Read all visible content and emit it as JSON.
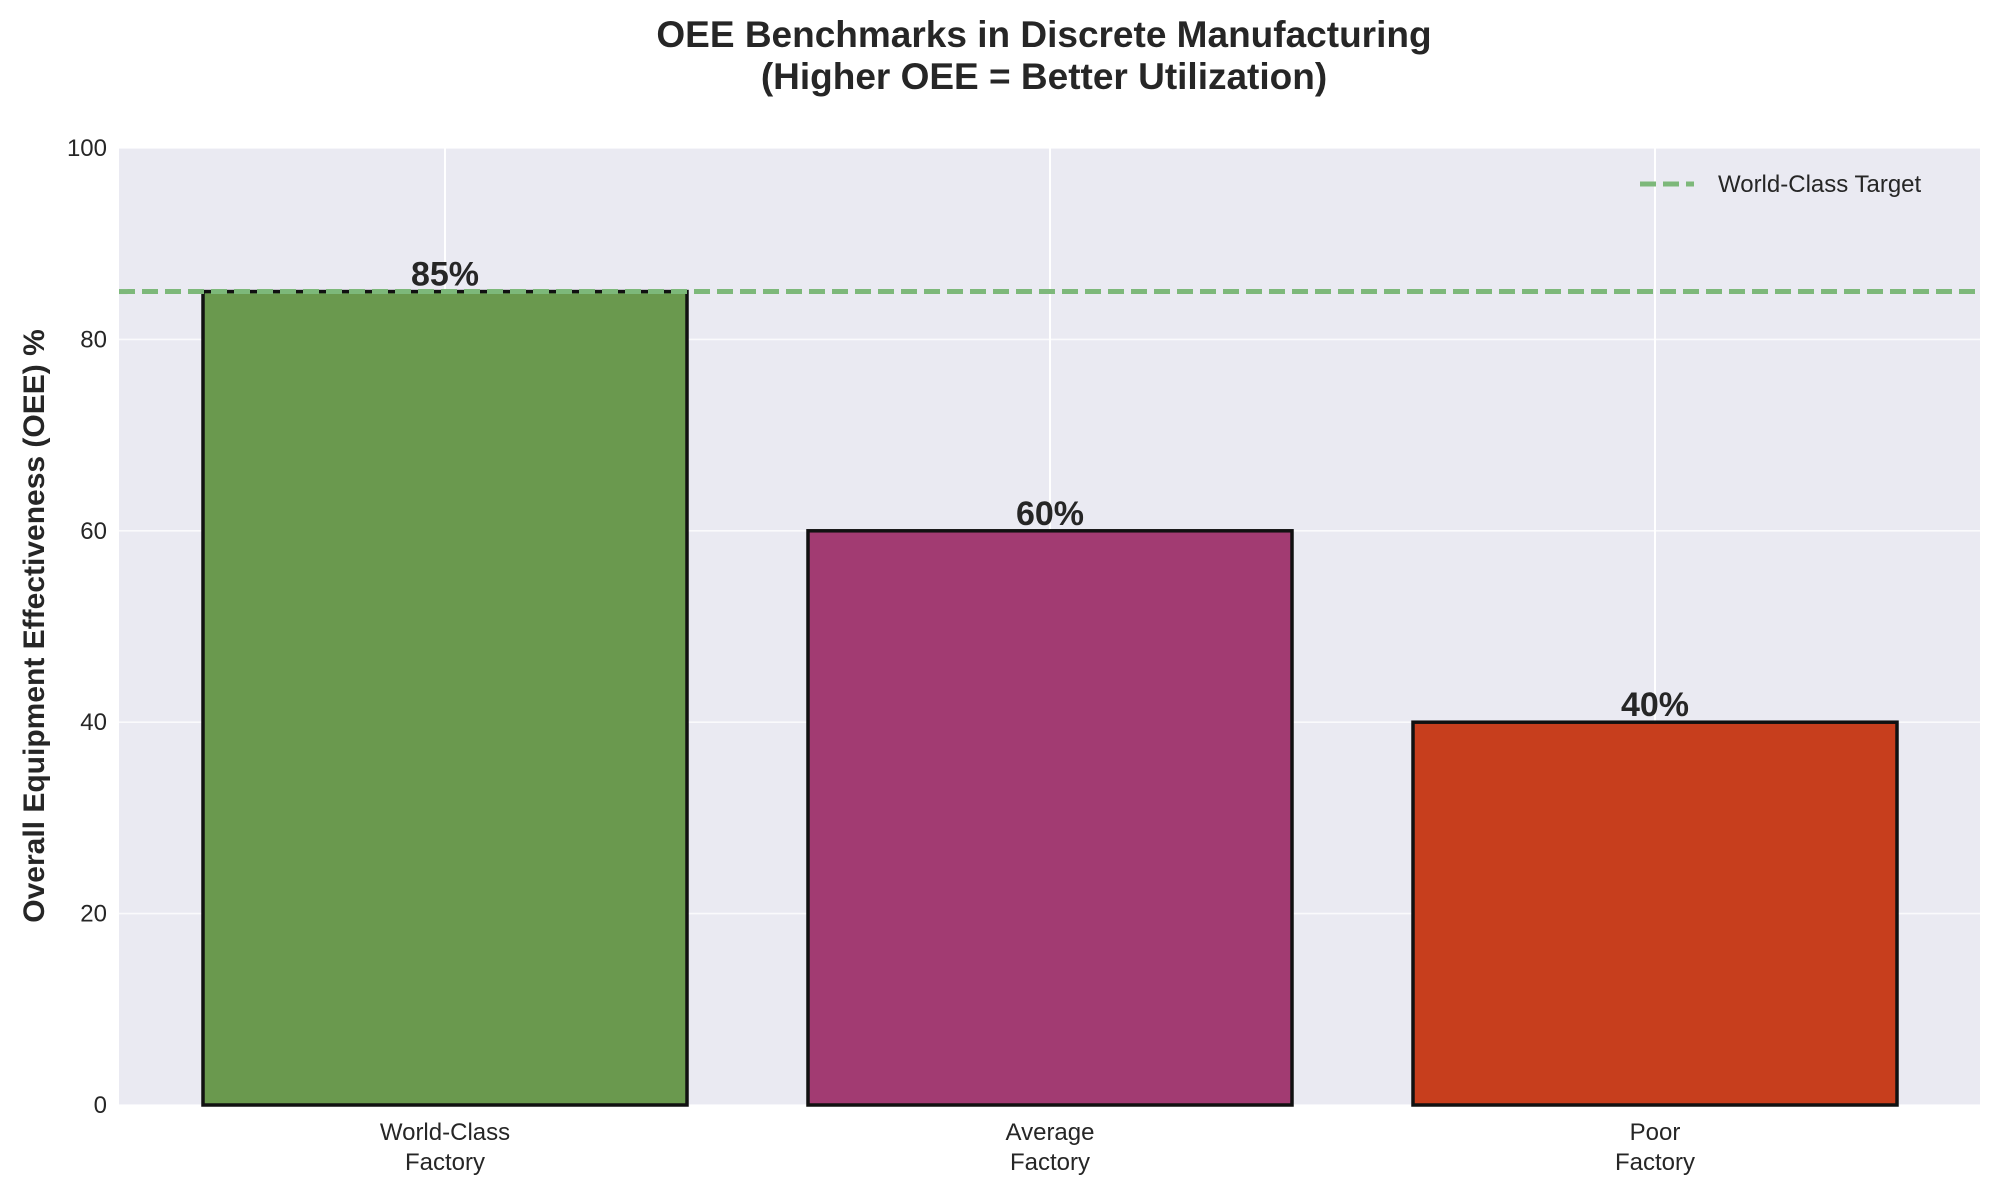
{
  "chart_data": {
    "type": "bar",
    "title": "OEE Benchmarks in Discrete Manufacturing",
    "subtitle": "(Higher OEE = Better Utilization)",
    "xlabel": "",
    "ylabel": "Overall Equipment Effectiveness (OEE) %",
    "categories": [
      [
        "World-Class",
        "Factory"
      ],
      [
        "Average",
        "Factory"
      ],
      [
        "Poor",
        "Factory"
      ]
    ],
    "values": [
      85,
      60,
      40
    ],
    "value_labels": [
      "85%",
      "60%",
      "40%"
    ],
    "colors": [
      "#6a994e",
      "#a23b72",
      "#c73e1d"
    ],
    "ylim": [
      0,
      100
    ],
    "yticks": [
      0,
      20,
      40,
      60,
      80,
      100
    ],
    "grid": true,
    "background": "#eaeaf2",
    "reference_line": {
      "name": "World-Class Target",
      "value": 85,
      "color": "#7db87a",
      "style": "dashed"
    },
    "legend_position": "top-right"
  }
}
